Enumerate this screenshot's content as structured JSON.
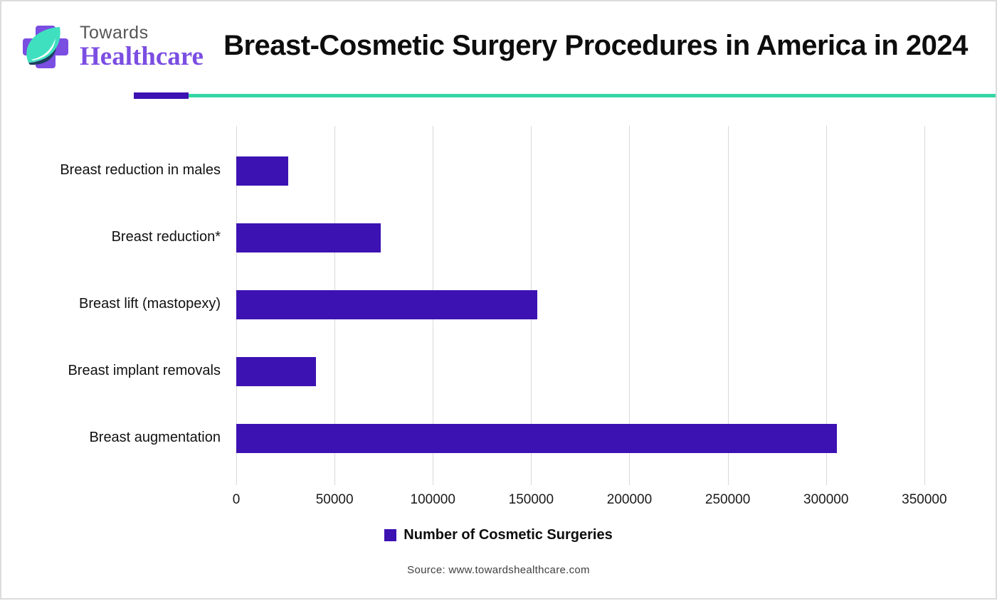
{
  "header": {
    "logo": {
      "line1": "Towards",
      "line2": "Healthcare"
    },
    "title": "Breast-Cosmetic Surgery Procedures in America in 2024"
  },
  "chart_data": {
    "type": "bar",
    "orientation": "horizontal",
    "title": "Breast-Cosmetic Surgery Procedures in America in 2024",
    "categories": [
      "Breast reduction in males",
      "Breast reduction*",
      "Breast lift (mastopexy)",
      "Breast implant removals",
      "Breast augmentation"
    ],
    "values": [
      26500,
      73500,
      153000,
      40500,
      305500
    ],
    "x_ticks": [
      0,
      50000,
      100000,
      150000,
      200000,
      250000,
      300000,
      350000
    ],
    "x_tick_labels": [
      "0",
      "50000",
      "100000",
      "150000",
      "200000",
      "250000",
      "300000",
      "350000"
    ],
    "xlim": [
      0,
      362000
    ],
    "xlabel": "",
    "ylabel": "",
    "grid": "vertical",
    "bar_color": "#3c12b2",
    "legend": {
      "label": "Number of Cosmetic Surgeries",
      "color": "#3c12b2",
      "position": "bottom"
    }
  },
  "footer": {
    "source": "Source: www.towardshealthcare.com"
  },
  "colors": {
    "bar": "#3c12b2",
    "divider_purple": "#3c12b2",
    "divider_teal": "#35d6a6",
    "logo_purple": "#7b4ee2",
    "logo_leaf": "#3fe0c0",
    "gridline": "#d9d9d9"
  }
}
